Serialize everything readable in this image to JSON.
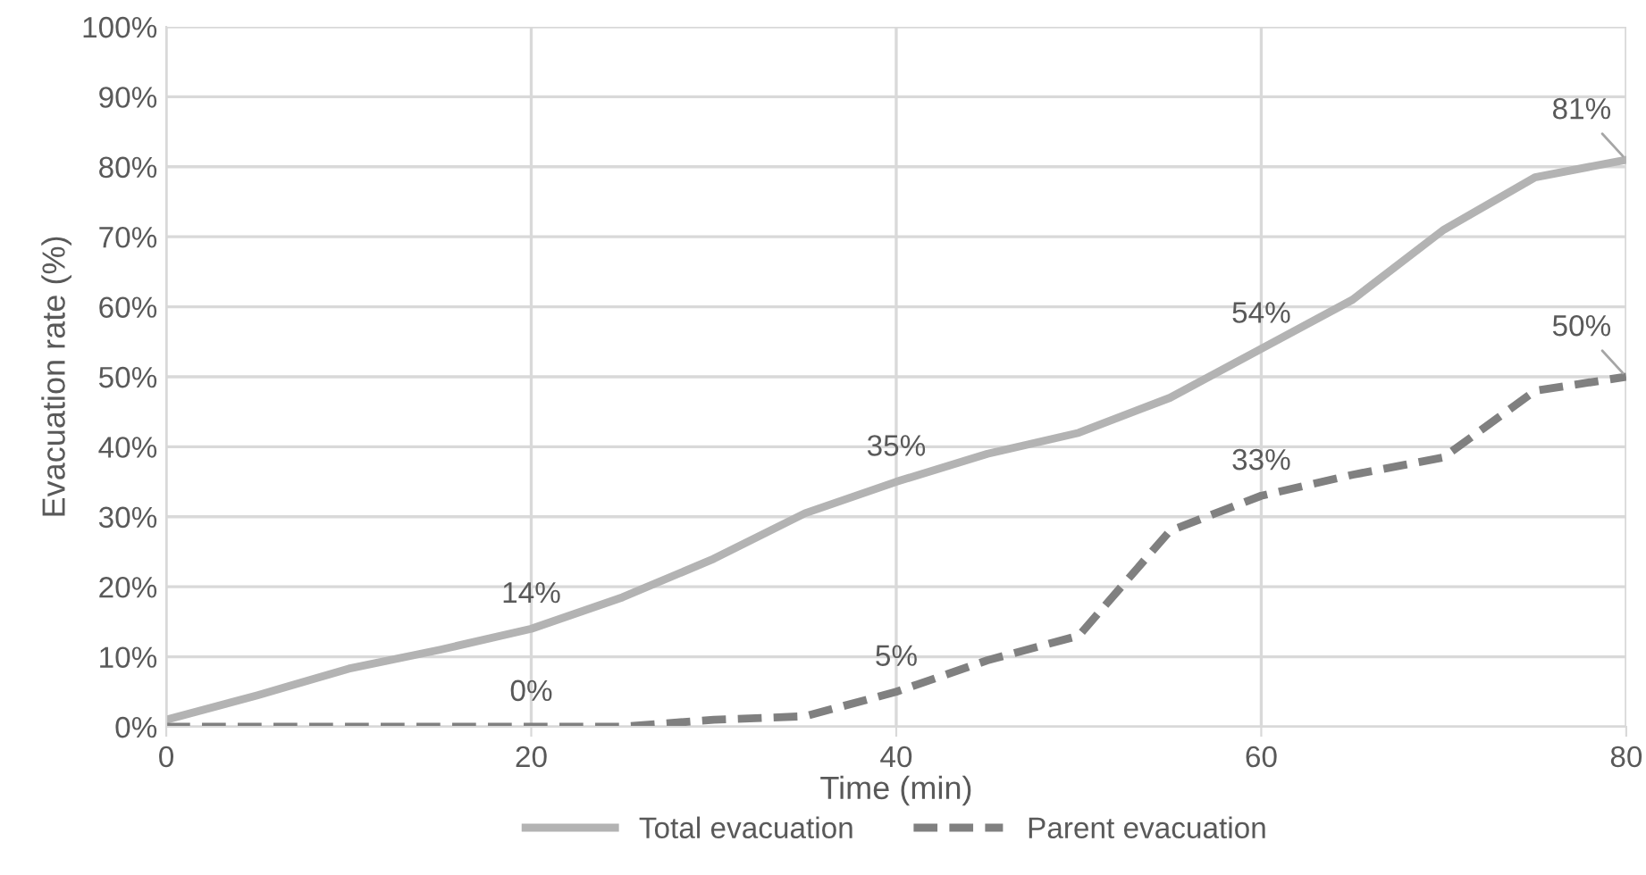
{
  "chart_data": {
    "type": "line",
    "xlabel": "Time (min)",
    "ylabel": "Evacuation rate (%)",
    "x": [
      0,
      5,
      10,
      15,
      20,
      25,
      30,
      35,
      40,
      45,
      50,
      55,
      60,
      65,
      70,
      75,
      80
    ],
    "series": [
      {
        "name": "Total evacuation",
        "color": "#b3b3b3",
        "line_style": "solid",
        "values": [
          1,
          4.5,
          8.3,
          11,
          14,
          18.5,
          24,
          30.5,
          35,
          39,
          42,
          47,
          54,
          61,
          71,
          78.5,
          81
        ]
      },
      {
        "name": "Parent evacuation",
        "color": "#808080",
        "line_style": "dashed",
        "values": [
          0,
          0,
          0,
          0,
          0,
          0,
          1,
          1.5,
          5,
          9.5,
          13,
          28,
          33,
          36,
          38.5,
          48,
          50
        ]
      }
    ],
    "annotations": [
      {
        "text": "14%",
        "x": 20,
        "y": 14
      },
      {
        "text": "35%",
        "x": 40,
        "y": 35
      },
      {
        "text": "54%",
        "x": 60,
        "y": 54
      },
      {
        "text": "81%",
        "x": 80,
        "y": 81
      },
      {
        "text": "0%",
        "x": 20,
        "y": 0
      },
      {
        "text": "5%",
        "x": 40,
        "y": 5
      },
      {
        "text": "33%",
        "x": 60,
        "y": 33
      },
      {
        "text": "50%",
        "x": 80,
        "y": 50
      }
    ],
    "xlim": [
      0,
      80
    ],
    "xticks": [
      0,
      20,
      40,
      60,
      80
    ],
    "ylim": [
      0,
      100
    ],
    "yticks": [
      {
        "value": 0,
        "label": "0%"
      },
      {
        "value": 10,
        "label": "10%"
      },
      {
        "value": 20,
        "label": "20%"
      },
      {
        "value": 30,
        "label": "30%"
      },
      {
        "value": 40,
        "label": "40%"
      },
      {
        "value": 50,
        "label": "50%"
      },
      {
        "value": 60,
        "label": "60%"
      },
      {
        "value": 70,
        "label": "70%"
      },
      {
        "value": 80,
        "label": "80%"
      },
      {
        "value": 90,
        "label": "90%"
      },
      {
        "value": 100,
        "label": "100%"
      }
    ],
    "grid": true,
    "legend": "bottom",
    "marker": "none"
  }
}
